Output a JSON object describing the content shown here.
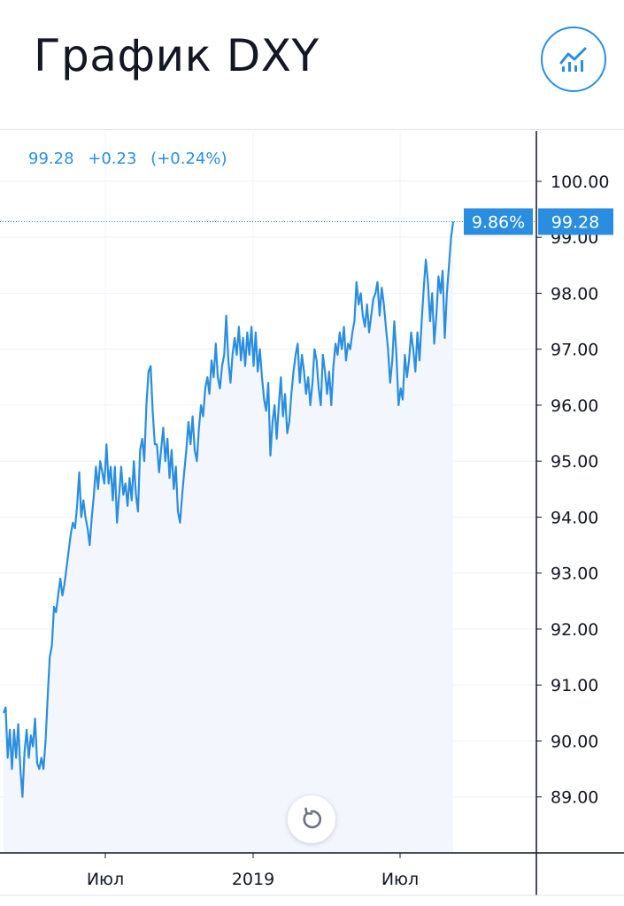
{
  "header": {
    "title": "График DXY"
  },
  "legend": {
    "price": "99.28",
    "change": "+0.23",
    "change_pct": "(+0.24%)"
  },
  "colors": {
    "accent": "#2a8ee0",
    "text": "#131722",
    "grid": "#f0f3fa",
    "area_fill": "#f3f7fd",
    "axis_text": "#131722"
  },
  "chart_data": {
    "type": "area",
    "x_ticks": [
      "Июл",
      "2019",
      "Июл"
    ],
    "y_ticks": [
      "100.00",
      "99.00",
      "98.00",
      "97.00",
      "96.00",
      "95.00",
      "94.00",
      "93.00",
      "92.00",
      "91.00",
      "90.00",
      "89.00"
    ],
    "ylim": [
      88.0,
      100.9
    ],
    "last_value": 99.28,
    "last_value_label": "99.28",
    "percent_badge": "9.86%",
    "grid": true,
    "series": [
      {
        "values": [
          90.5,
          90.6,
          89.7,
          90.2,
          89.5,
          90.2,
          89.7,
          90.3,
          89.5,
          89.0,
          89.8,
          90.2,
          89.7,
          90.1,
          89.9,
          90.4,
          89.6,
          89.5,
          89.7,
          89.5,
          90.0,
          90.8,
          91.5,
          91.7,
          92.4,
          92.3,
          92.6,
          92.9,
          92.6,
          92.8,
          93.1,
          93.4,
          93.7,
          93.9,
          93.8,
          94.2,
          94.8,
          94.0,
          94.3,
          94.0,
          93.8,
          93.5,
          94.0,
          94.4,
          94.9,
          94.5,
          95.0,
          94.8,
          94.6,
          95.3,
          94.6,
          94.9,
          94.3,
          94.9,
          93.9,
          94.4,
          94.9,
          94.4,
          94.6,
          94.2,
          94.7,
          94.3,
          95.0,
          94.4,
          94.1,
          95.2,
          95.4,
          95.0,
          96.0,
          96.6,
          96.7,
          95.9,
          95.3,
          95.3,
          94.8,
          95.2,
          95.6,
          95.0,
          95.4,
          94.7,
          95.2,
          94.5,
          94.9,
          94.1,
          93.9,
          94.4,
          94.8,
          95.2,
          95.7,
          95.3,
          95.8,
          95.2,
          95.0,
          95.6,
          96.0,
          95.8,
          96.3,
          96.5,
          96.2,
          96.8,
          96.5,
          97.1,
          96.5,
          96.3,
          96.7,
          96.9,
          97.6,
          96.8,
          96.4,
          96.9,
          97.2,
          96.9,
          97.4,
          96.8,
          97.2,
          96.7,
          97.3,
          96.9,
          97.4,
          96.7,
          97.3,
          96.6,
          97.0,
          96.5,
          96.1,
          95.9,
          96.4,
          95.1,
          95.7,
          96.0,
          95.4,
          96.0,
          96.5,
          95.8,
          96.2,
          95.5,
          95.7,
          96.2,
          96.6,
          96.9,
          97.1,
          96.4,
          96.9,
          96.6,
          96.2,
          96.5,
          96.0,
          96.4,
          97.0,
          96.8,
          96.3,
          96.0,
          96.9,
          96.6,
          96.2,
          96.6,
          96.0,
          96.7,
          97.1,
          96.9,
          97.3,
          97.0,
          97.4,
          96.8,
          97.1,
          97.0,
          97.3,
          97.5,
          98.2,
          97.8,
          98.0,
          97.6,
          97.4,
          97.8,
          97.3,
          97.6,
          97.9,
          98.0,
          98.2,
          97.6,
          98.1,
          97.8,
          97.4,
          97.0,
          96.4,
          96.8,
          97.5,
          96.9,
          96.0,
          96.3,
          96.1,
          96.9,
          96.5,
          96.8,
          97.3,
          97.0,
          96.6,
          97.3,
          96.8,
          97.5,
          98.1,
          98.6,
          98.2,
          97.5,
          98.0,
          97.1,
          97.6,
          98.3,
          98.0,
          98.4,
          97.2,
          98.0,
          98.5,
          99.0,
          99.28
        ]
      }
    ]
  }
}
